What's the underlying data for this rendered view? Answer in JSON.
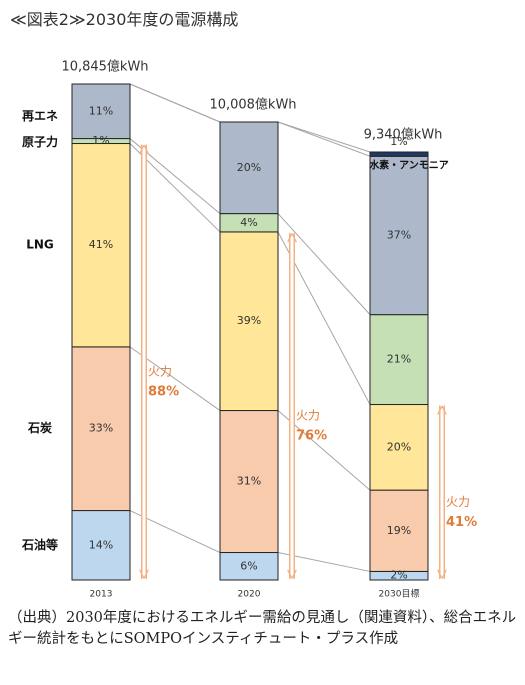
{
  "title": "≪図表2≫2030年度の電源構成",
  "source_note": "（出典）2030年度におけるエネルギー需給の見通し（関連資料）、総合エネルギー統計をもとにSOMPOインスティチュート・プラス作成",
  "chart_data": {
    "type": "bar",
    "stacked": true,
    "categories": [
      "2013",
      "2020",
      "2030目標"
    ],
    "totals": [
      "10,845億kWh",
      "10,008億kWh",
      "9,340億kWh"
    ],
    "series": [
      {
        "name": "石油等",
        "values": [
          14,
          6,
          2
        ],
        "labels": [
          "14%",
          "6%",
          "2%"
        ],
        "color": "#bdd7ee"
      },
      {
        "name": "石炭",
        "values": [
          33,
          31,
          19
        ],
        "labels": [
          "33%",
          "31%",
          "19%"
        ],
        "color": "#f8cbad"
      },
      {
        "name": "LNG",
        "values": [
          41,
          39,
          20
        ],
        "labels": [
          "41%",
          "39%",
          "20%"
        ],
        "color": "#ffe699"
      },
      {
        "name": "原子力",
        "values": [
          1,
          4,
          21
        ],
        "labels": [
          "1%",
          "4%",
          "21%"
        ],
        "color": "#c5e0b4"
      },
      {
        "name": "再エネ",
        "values": [
          11,
          20,
          37
        ],
        "labels": [
          "11%",
          "20%",
          "37%"
        ],
        "color": "#adb9ca"
      },
      {
        "name": "水素・アンモニア",
        "values": [
          0,
          0,
          1
        ],
        "labels": [
          "",
          "",
          "1%"
        ],
        "color": "#1f3864"
      }
    ],
    "thermal": {
      "label": "火力",
      "values": [
        "88%",
        "76%",
        "41%"
      ],
      "color": "#e07b39"
    },
    "annotation": "水素・アンモニア",
    "xlabel": "",
    "ylabel": ""
  }
}
